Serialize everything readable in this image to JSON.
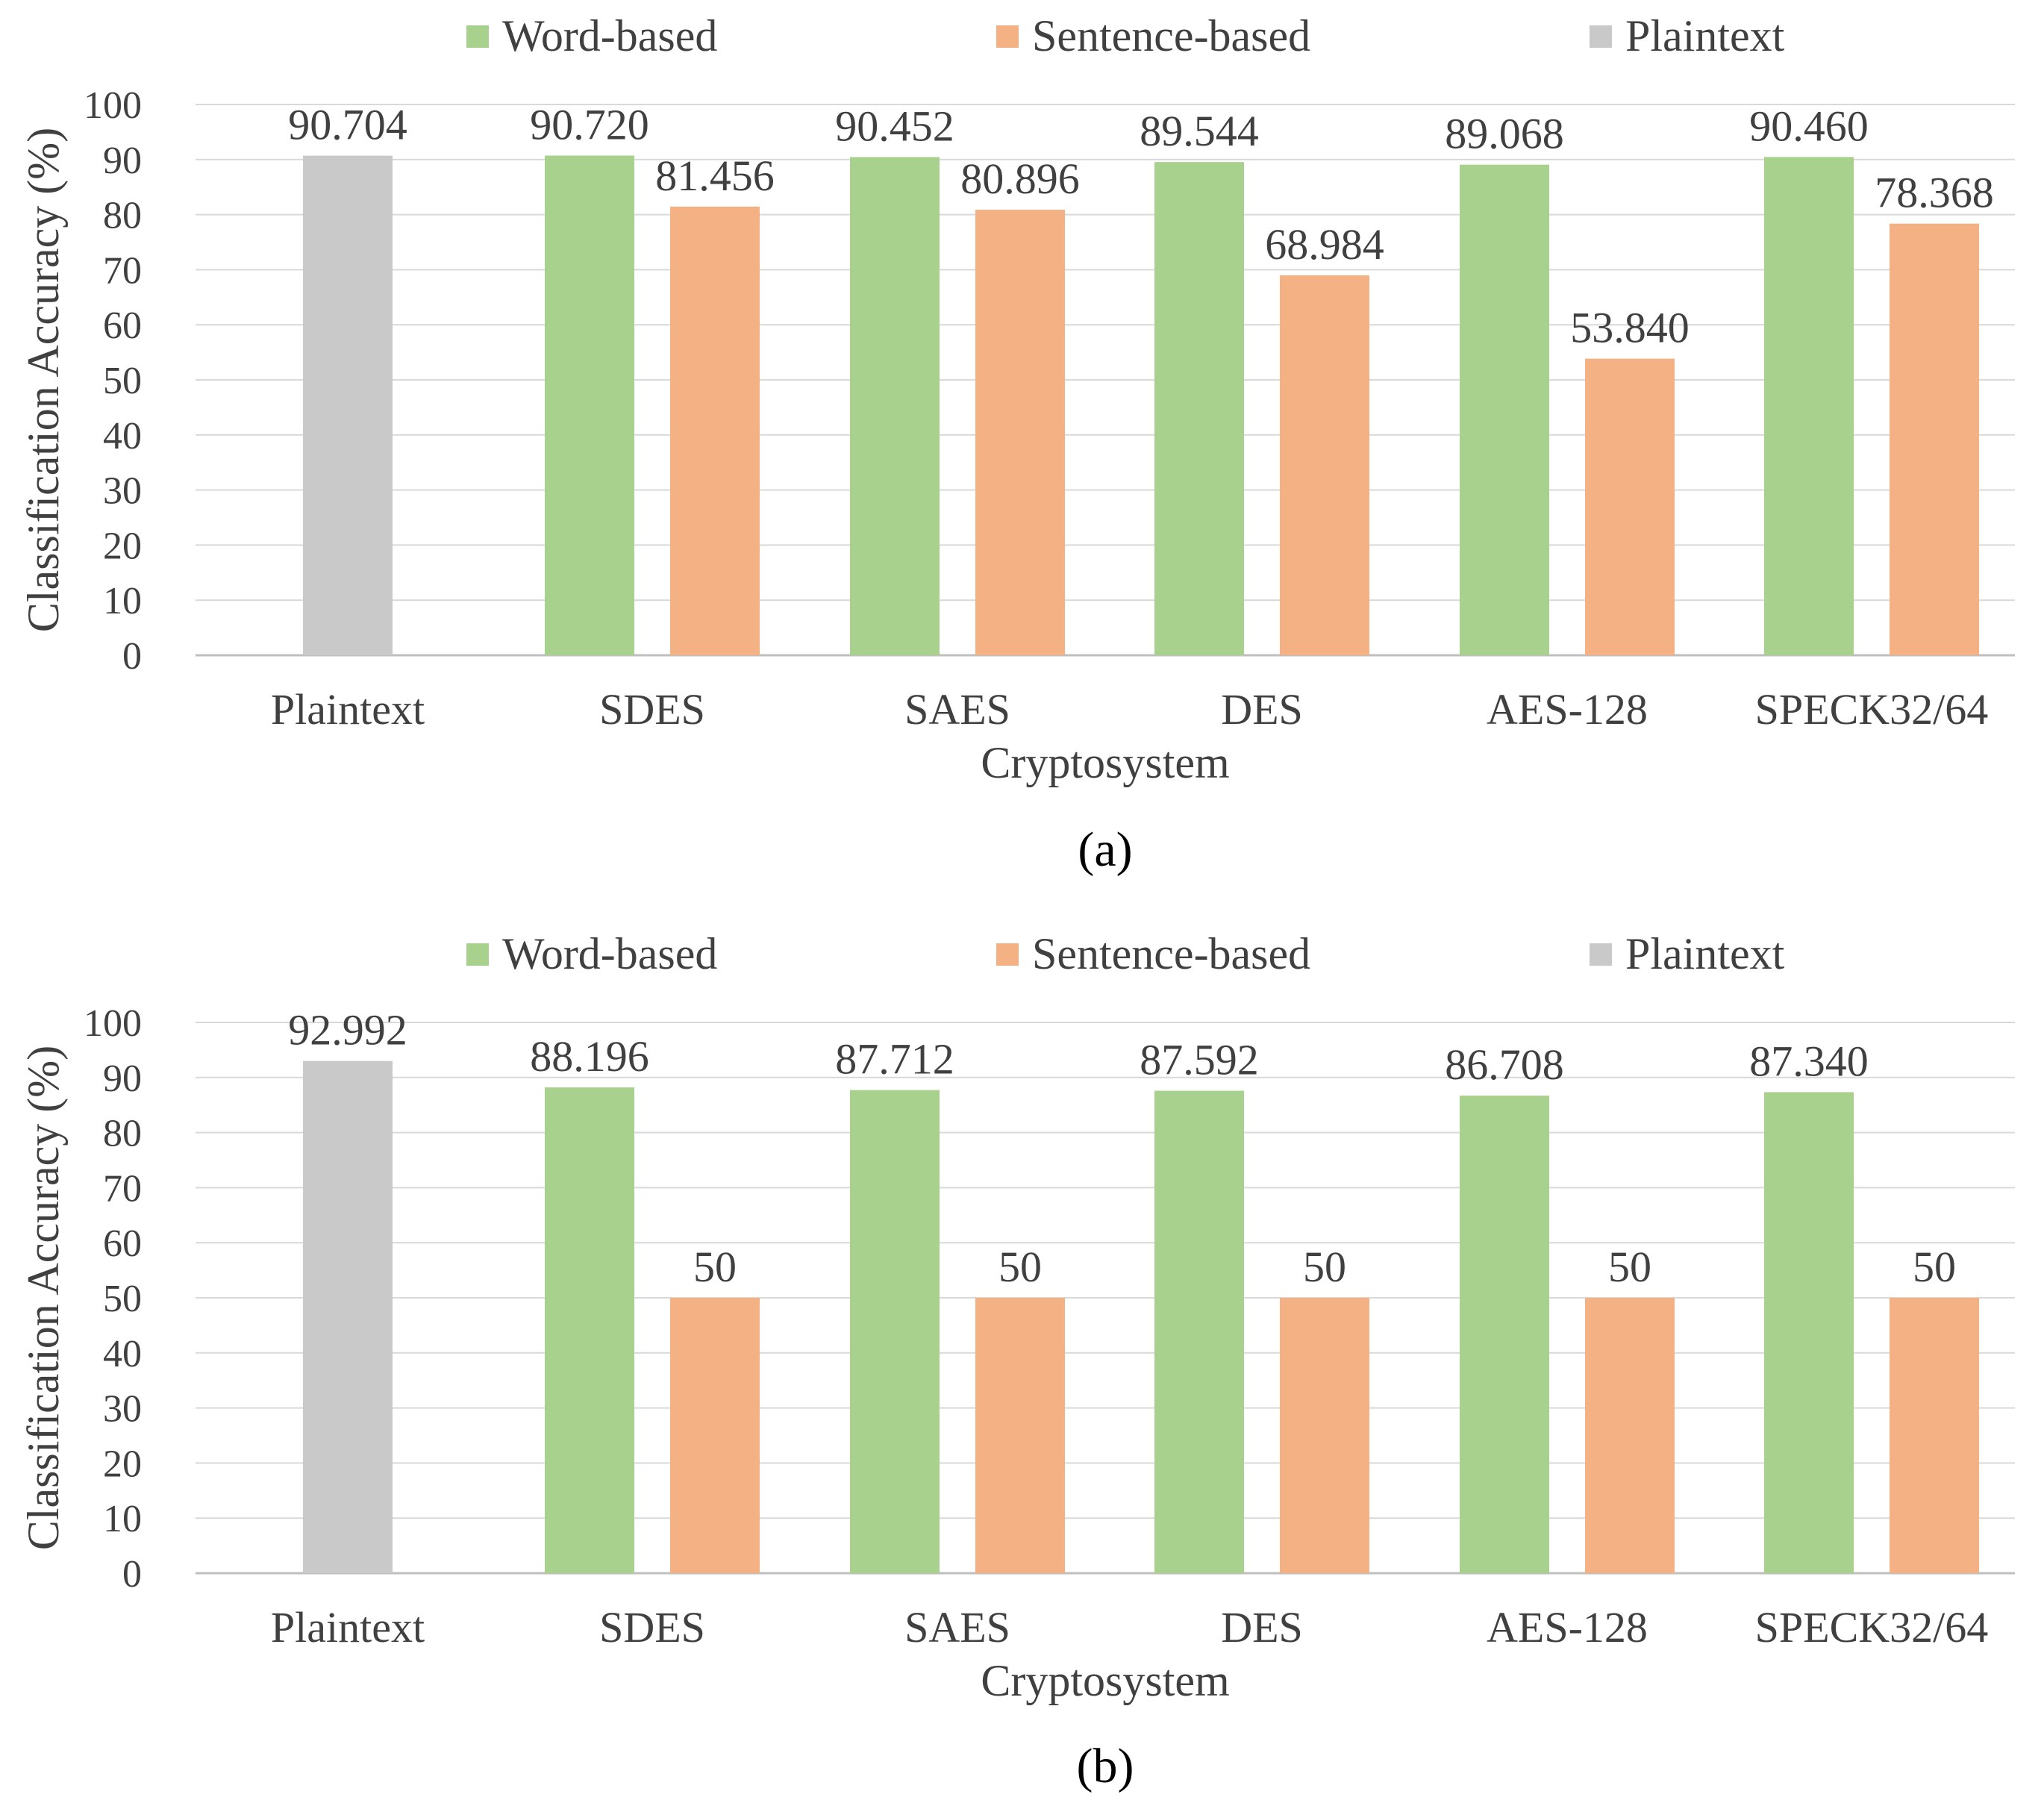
{
  "chart_data": [
    {
      "type": "bar",
      "caption": "(a)",
      "categories": [
        "Plaintext",
        "SDES",
        "SAES",
        "DES",
        "AES-128",
        "SPECK32/64"
      ],
      "series": [
        {
          "name": "Word-based",
          "color": "#a9d18e",
          "values": [
            null,
            90.72,
            90.452,
            89.544,
            89.068,
            90.46
          ],
          "labels": [
            "",
            "90.720",
            "90.452",
            "89.544",
            "89.068",
            "90.460"
          ]
        },
        {
          "name": "Sentence-based",
          "color": "#f4b183",
          "values": [
            null,
            81.456,
            80.896,
            68.984,
            53.84,
            78.368
          ],
          "labels": [
            "",
            "81.456",
            "80.896",
            "68.984",
            "53.840",
            "78.368"
          ]
        },
        {
          "name": "Plaintext",
          "color": "#c9c9c9",
          "values": [
            90.704,
            null,
            null,
            null,
            null,
            null
          ],
          "labels": [
            "90.704",
            "",
            "",
            "",
            "",
            ""
          ]
        }
      ],
      "xlabel": "Cryptosystem",
      "ylabel": "Classification Accuracy (%)",
      "ylim": [
        0,
        100
      ],
      "yticks": [
        0,
        10,
        20,
        30,
        40,
        50,
        60,
        70,
        80,
        90,
        100
      ],
      "grid": true,
      "legend_position": "top"
    },
    {
      "type": "bar",
      "caption": "(b)",
      "categories": [
        "Plaintext",
        "SDES",
        "SAES",
        "DES",
        "AES-128",
        "SPECK32/64"
      ],
      "series": [
        {
          "name": "Word-based",
          "color": "#a9d18e",
          "values": [
            null,
            88.196,
            87.712,
            87.592,
            86.708,
            87.34
          ],
          "labels": [
            "",
            "88.196",
            "87.712",
            "87.592",
            "86.708",
            "87.340"
          ]
        },
        {
          "name": "Sentence-based",
          "color": "#f4b183",
          "values": [
            null,
            50,
            50,
            50,
            50,
            50
          ],
          "labels": [
            "",
            "50",
            "50",
            "50",
            "50",
            "50"
          ]
        },
        {
          "name": "Plaintext",
          "color": "#c9c9c9",
          "values": [
            92.992,
            null,
            null,
            null,
            null,
            null
          ],
          "labels": [
            "92.992",
            "",
            "",
            "",
            "",
            ""
          ]
        }
      ],
      "xlabel": "Cryptosystem",
      "ylabel": "Classification Accuracy (%)",
      "ylim": [
        0,
        100
      ],
      "yticks": [
        0,
        10,
        20,
        30,
        40,
        50,
        60,
        70,
        80,
        90,
        100
      ],
      "grid": true,
      "legend_position": "top"
    }
  ]
}
